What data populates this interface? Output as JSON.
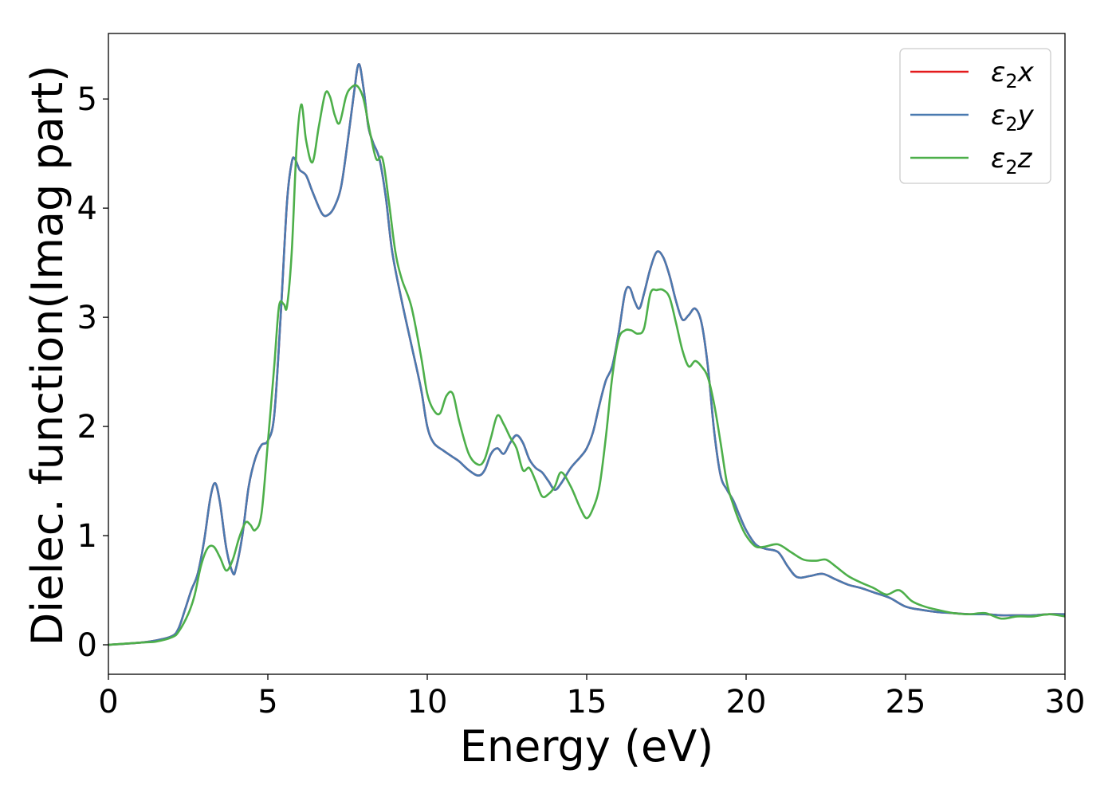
{
  "chart_data": {
    "type": "line",
    "xlabel": "Energy (eV)",
    "ylabel": "Dielec. function(Imag part)",
    "xlim": [
      0,
      30
    ],
    "ylim": [
      -0.27,
      5.6
    ],
    "xticks": [
      0,
      5,
      10,
      15,
      20,
      25,
      30
    ],
    "xtick_labels": [
      "0",
      "5",
      "10",
      "15",
      "20",
      "25",
      "30"
    ],
    "yticks": [
      0,
      1,
      2,
      3,
      4,
      5
    ],
    "ytick_labels": [
      "0",
      "1",
      "2",
      "3",
      "4",
      "5"
    ],
    "grid": false,
    "legend_position": "top-right",
    "series": [
      {
        "name": "ε2x",
        "legend": {
          "base": "ε",
          "sub": "2",
          "var": "x"
        },
        "color": "#e41a1c",
        "x": [
          0,
          1,
          1.5,
          2,
          2.2,
          2.4,
          2.6,
          2.8,
          3.0,
          3.2,
          3.35,
          3.5,
          3.7,
          3.9,
          4.0,
          4.2,
          4.4,
          4.6,
          4.8,
          5.0,
          5.2,
          5.4,
          5.6,
          5.75,
          5.85,
          6.0,
          6.2,
          6.4,
          6.7,
          6.9,
          7.1,
          7.3,
          7.5,
          7.7,
          7.85,
          8.0,
          8.15,
          8.3,
          8.5,
          8.7,
          8.9,
          9.2,
          9.5,
          9.8,
          10.0,
          10.2,
          10.5,
          10.8,
          11.0,
          11.3,
          11.6,
          11.8,
          12.0,
          12.2,
          12.4,
          12.6,
          12.8,
          13.0,
          13.2,
          13.4,
          13.6,
          13.8,
          14.0,
          14.2,
          14.5,
          14.8,
          15.0,
          15.2,
          15.4,
          15.6,
          15.8,
          16.0,
          16.2,
          16.35,
          16.5,
          16.65,
          16.8,
          17.0,
          17.2,
          17.4,
          17.6,
          17.8,
          18.0,
          18.2,
          18.4,
          18.6,
          18.8,
          19.0,
          19.2,
          19.4,
          19.6,
          19.8,
          20.0,
          20.3,
          20.6,
          21.0,
          21.3,
          21.6,
          22.0,
          22.4,
          22.8,
          23.2,
          23.6,
          24.0,
          24.5,
          25.0,
          25.5,
          26.0,
          26.5,
          27.0,
          27.5,
          28.0,
          28.5,
          29.0,
          29.5,
          30.0
        ],
        "values": [
          0.0,
          0.02,
          0.04,
          0.08,
          0.15,
          0.32,
          0.5,
          0.65,
          0.95,
          1.35,
          1.48,
          1.3,
          0.88,
          0.66,
          0.7,
          1.0,
          1.45,
          1.7,
          1.83,
          1.87,
          2.1,
          3.0,
          4.05,
          4.42,
          4.45,
          4.35,
          4.3,
          4.15,
          3.95,
          3.94,
          4.02,
          4.2,
          4.6,
          5.05,
          5.32,
          5.1,
          4.75,
          4.6,
          4.45,
          4.1,
          3.6,
          3.15,
          2.75,
          2.35,
          2.0,
          1.85,
          1.78,
          1.72,
          1.68,
          1.6,
          1.55,
          1.6,
          1.75,
          1.8,
          1.75,
          1.85,
          1.92,
          1.85,
          1.7,
          1.62,
          1.58,
          1.5,
          1.42,
          1.48,
          1.62,
          1.72,
          1.8,
          1.95,
          2.2,
          2.42,
          2.55,
          2.85,
          3.22,
          3.27,
          3.15,
          3.08,
          3.22,
          3.45,
          3.6,
          3.55,
          3.38,
          3.15,
          2.98,
          3.02,
          3.08,
          2.95,
          2.55,
          1.95,
          1.55,
          1.42,
          1.32,
          1.18,
          1.05,
          0.92,
          0.88,
          0.85,
          0.72,
          0.62,
          0.63,
          0.65,
          0.6,
          0.55,
          0.52,
          0.48,
          0.43,
          0.35,
          0.32,
          0.3,
          0.29,
          0.28,
          0.28,
          0.27,
          0.27,
          0.27,
          0.28,
          0.28
        ]
      },
      {
        "name": "ε2y",
        "legend": {
          "base": "ε",
          "sub": "2",
          "var": "y"
        },
        "color": "#4a7ab0",
        "x": [
          0,
          1,
          1.5,
          2,
          2.2,
          2.4,
          2.6,
          2.8,
          3.0,
          3.2,
          3.35,
          3.5,
          3.7,
          3.9,
          4.0,
          4.2,
          4.4,
          4.6,
          4.8,
          5.0,
          5.2,
          5.4,
          5.6,
          5.75,
          5.85,
          6.0,
          6.2,
          6.4,
          6.7,
          6.9,
          7.1,
          7.3,
          7.5,
          7.7,
          7.85,
          8.0,
          8.15,
          8.3,
          8.5,
          8.7,
          8.9,
          9.2,
          9.5,
          9.8,
          10.0,
          10.2,
          10.5,
          10.8,
          11.0,
          11.3,
          11.6,
          11.8,
          12.0,
          12.2,
          12.4,
          12.6,
          12.8,
          13.0,
          13.2,
          13.4,
          13.6,
          13.8,
          14.0,
          14.2,
          14.5,
          14.8,
          15.0,
          15.2,
          15.4,
          15.6,
          15.8,
          16.0,
          16.2,
          16.35,
          16.5,
          16.65,
          16.8,
          17.0,
          17.2,
          17.4,
          17.6,
          17.8,
          18.0,
          18.2,
          18.4,
          18.6,
          18.8,
          19.0,
          19.2,
          19.4,
          19.6,
          19.8,
          20.0,
          20.3,
          20.6,
          21.0,
          21.3,
          21.6,
          22.0,
          22.4,
          22.8,
          23.2,
          23.6,
          24.0,
          24.5,
          25.0,
          25.5,
          26.0,
          26.5,
          27.0,
          27.5,
          28.0,
          28.5,
          29.0,
          29.5,
          30.0
        ],
        "values": [
          0.0,
          0.02,
          0.04,
          0.08,
          0.15,
          0.32,
          0.5,
          0.65,
          0.95,
          1.35,
          1.48,
          1.3,
          0.88,
          0.66,
          0.7,
          1.0,
          1.45,
          1.7,
          1.83,
          1.87,
          2.1,
          3.0,
          4.05,
          4.42,
          4.45,
          4.35,
          4.3,
          4.15,
          3.95,
          3.94,
          4.02,
          4.2,
          4.6,
          5.05,
          5.32,
          5.1,
          4.75,
          4.6,
          4.45,
          4.1,
          3.6,
          3.15,
          2.75,
          2.35,
          2.0,
          1.85,
          1.78,
          1.72,
          1.68,
          1.6,
          1.55,
          1.6,
          1.75,
          1.8,
          1.75,
          1.85,
          1.92,
          1.85,
          1.7,
          1.62,
          1.58,
          1.5,
          1.42,
          1.48,
          1.62,
          1.72,
          1.8,
          1.95,
          2.2,
          2.42,
          2.55,
          2.85,
          3.22,
          3.27,
          3.15,
          3.08,
          3.22,
          3.45,
          3.6,
          3.55,
          3.38,
          3.15,
          2.98,
          3.02,
          3.08,
          2.95,
          2.55,
          1.95,
          1.55,
          1.42,
          1.32,
          1.18,
          1.05,
          0.92,
          0.88,
          0.85,
          0.72,
          0.62,
          0.63,
          0.65,
          0.6,
          0.55,
          0.52,
          0.48,
          0.43,
          0.35,
          0.32,
          0.3,
          0.29,
          0.28,
          0.28,
          0.27,
          0.27,
          0.27,
          0.28,
          0.28
        ]
      },
      {
        "name": "ε2z",
        "legend": {
          "base": "ε",
          "sub": "2",
          "var": "z"
        },
        "color": "#4daf4a",
        "x": [
          0,
          1,
          1.5,
          2,
          2.2,
          2.5,
          2.7,
          2.9,
          3.1,
          3.3,
          3.5,
          3.7,
          3.9,
          4.1,
          4.3,
          4.45,
          4.6,
          4.8,
          5.0,
          5.2,
          5.35,
          5.5,
          5.6,
          5.75,
          5.9,
          6.05,
          6.2,
          6.4,
          6.6,
          6.8,
          6.95,
          7.1,
          7.25,
          7.45,
          7.6,
          7.8,
          8.0,
          8.2,
          8.4,
          8.6,
          8.8,
          9.0,
          9.2,
          9.5,
          9.8,
          10.0,
          10.2,
          10.4,
          10.6,
          10.8,
          11.0,
          11.3,
          11.6,
          11.8,
          12.0,
          12.2,
          12.4,
          12.6,
          12.8,
          13.0,
          13.2,
          13.4,
          13.6,
          13.8,
          14.0,
          14.2,
          14.5,
          14.8,
          15.0,
          15.2,
          15.4,
          15.6,
          15.8,
          16.0,
          16.2,
          16.4,
          16.6,
          16.8,
          17.0,
          17.2,
          17.4,
          17.6,
          17.8,
          18.0,
          18.2,
          18.4,
          18.6,
          18.8,
          19.0,
          19.2,
          19.4,
          19.6,
          19.8,
          20.0,
          20.3,
          20.6,
          21.0,
          21.4,
          21.8,
          22.2,
          22.5,
          22.8,
          23.2,
          23.6,
          24.0,
          24.4,
          24.8,
          25.2,
          25.6,
          26.0,
          26.5,
          27.0,
          27.5,
          28.0,
          28.5,
          29.0,
          29.5,
          30.0
        ],
        "values": [
          0.0,
          0.02,
          0.03,
          0.07,
          0.12,
          0.28,
          0.45,
          0.72,
          0.88,
          0.9,
          0.8,
          0.68,
          0.78,
          0.98,
          1.12,
          1.1,
          1.05,
          1.2,
          1.85,
          2.55,
          3.1,
          3.12,
          3.1,
          3.6,
          4.55,
          4.95,
          4.62,
          4.42,
          4.75,
          5.05,
          5.02,
          4.85,
          4.78,
          5.02,
          5.1,
          5.12,
          5.0,
          4.7,
          4.45,
          4.45,
          4.05,
          3.6,
          3.35,
          3.1,
          2.65,
          2.3,
          2.15,
          2.12,
          2.28,
          2.3,
          2.05,
          1.75,
          1.65,
          1.7,
          1.9,
          2.1,
          2.02,
          1.9,
          1.8,
          1.6,
          1.62,
          1.5,
          1.36,
          1.38,
          1.45,
          1.58,
          1.45,
          1.25,
          1.16,
          1.25,
          1.45,
          1.9,
          2.45,
          2.8,
          2.88,
          2.88,
          2.85,
          2.9,
          3.22,
          3.25,
          3.25,
          3.18,
          2.95,
          2.7,
          2.55,
          2.6,
          2.55,
          2.45,
          2.2,
          1.85,
          1.48,
          1.28,
          1.12,
          1.0,
          0.9,
          0.9,
          0.92,
          0.85,
          0.78,
          0.77,
          0.78,
          0.72,
          0.63,
          0.57,
          0.52,
          0.46,
          0.5,
          0.4,
          0.35,
          0.32,
          0.29,
          0.28,
          0.29,
          0.24,
          0.26,
          0.26,
          0.28,
          0.26
        ]
      }
    ]
  }
}
